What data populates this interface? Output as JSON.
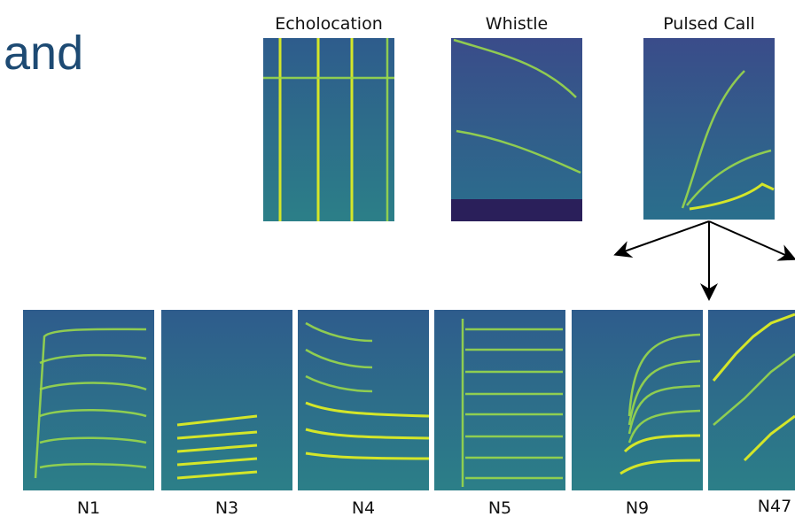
{
  "header": {
    "title": "and"
  },
  "top_panels": [
    {
      "label": "Echolocation"
    },
    {
      "label": "Whistle"
    },
    {
      "label": "Pulsed Call"
    }
  ],
  "bottom_panels": [
    {
      "label": "N1"
    },
    {
      "label": "N3"
    },
    {
      "label": "N4"
    },
    {
      "label": "N5"
    },
    {
      "label": "N9"
    },
    {
      "label": "N47"
    }
  ]
}
